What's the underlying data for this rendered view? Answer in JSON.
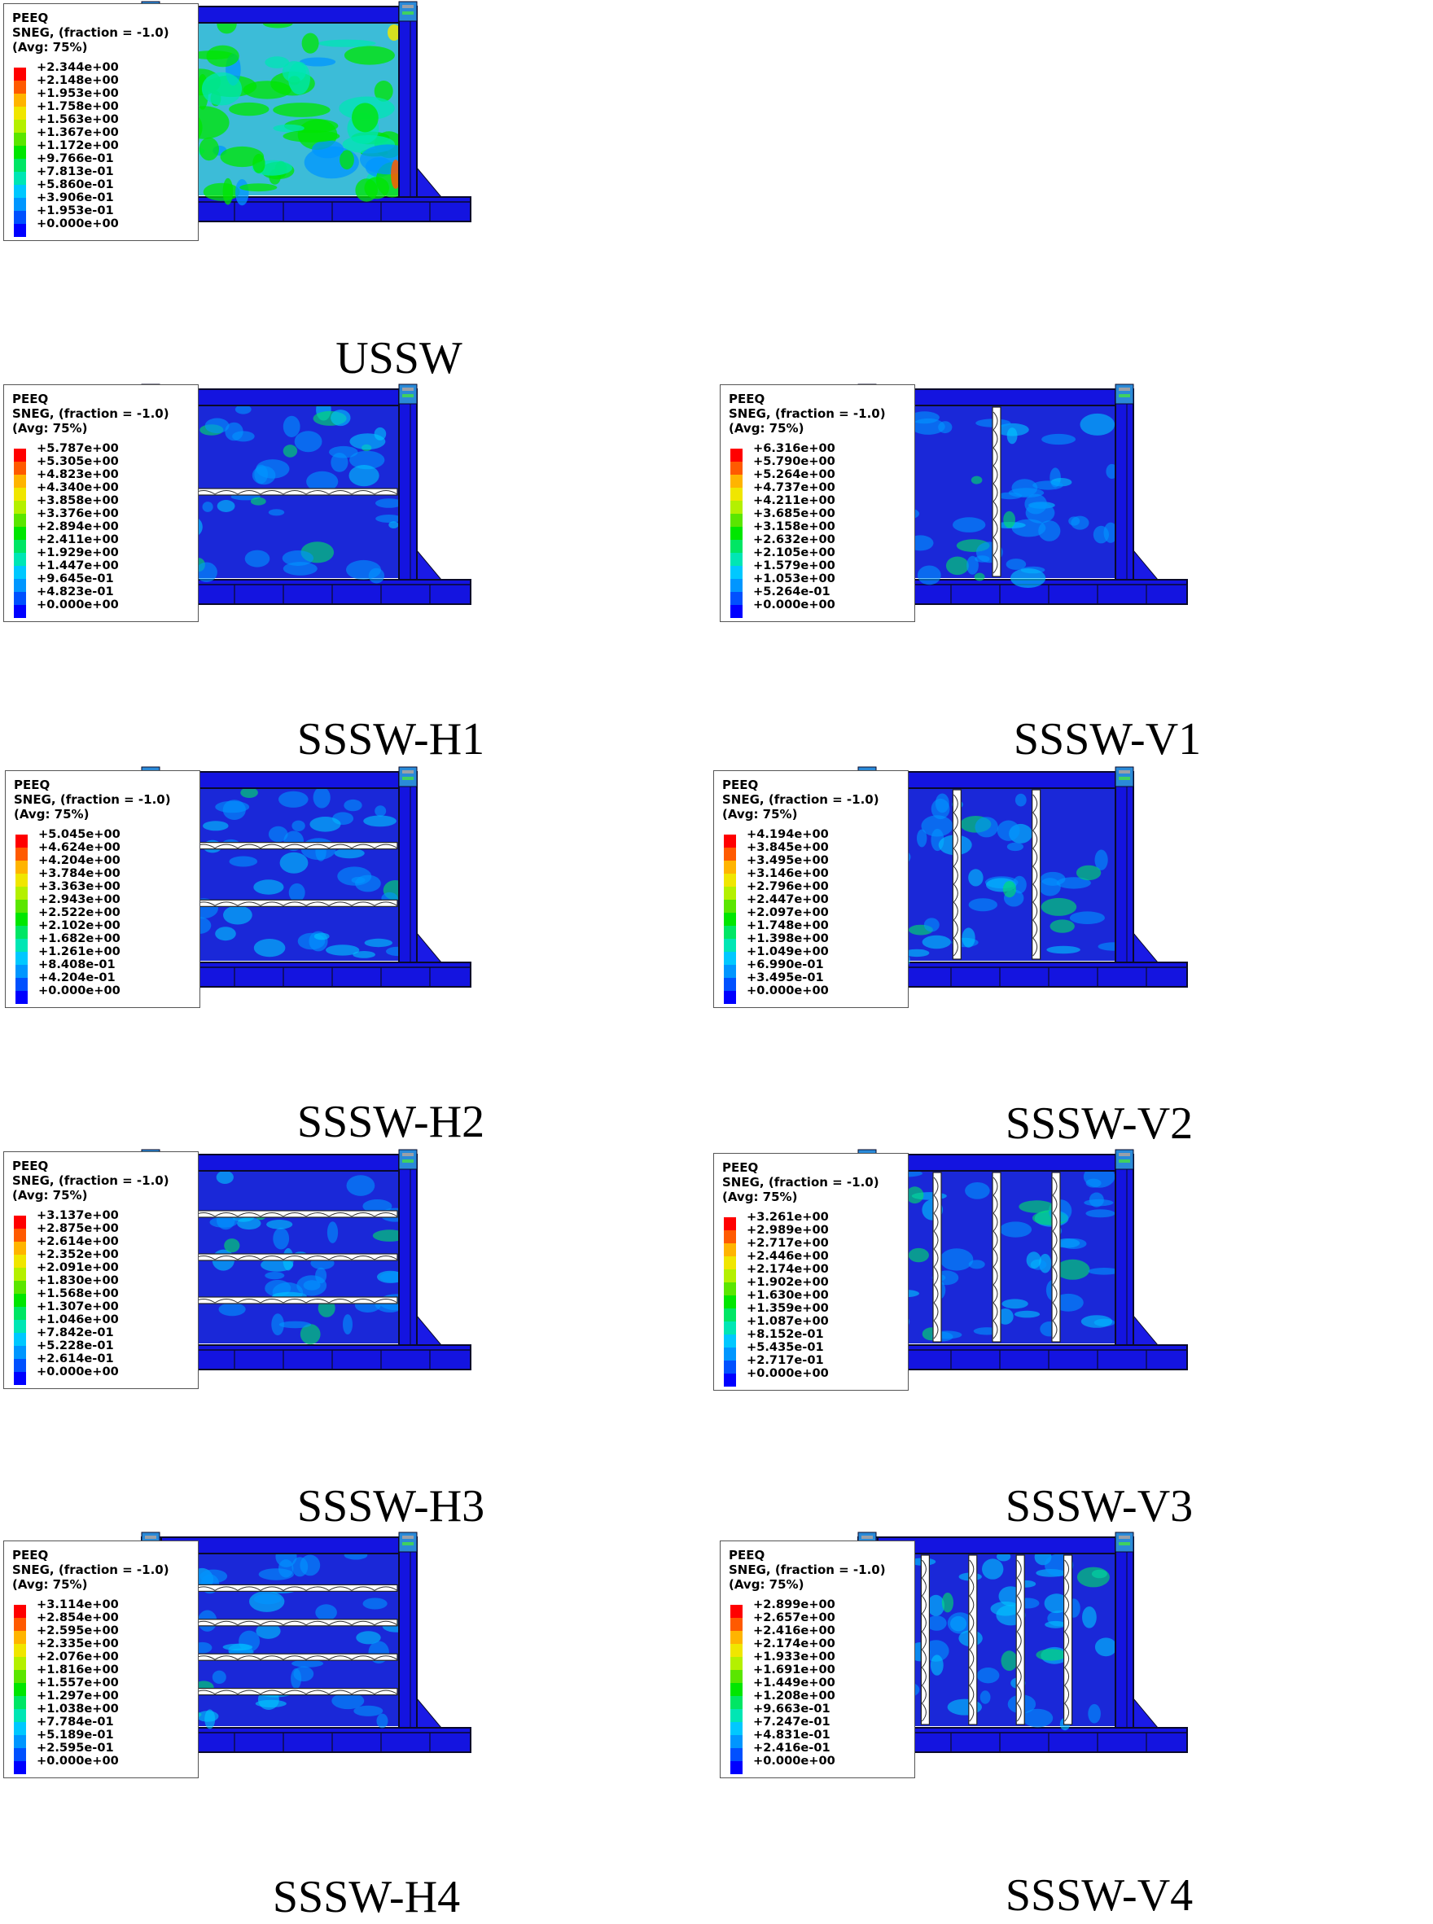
{
  "legend_header": [
    "PEEQ",
    "SNEG, (fraction = -1.0)",
    "(Avg: 75%)"
  ],
  "contour_colors": [
    "#ff0000",
    "#ff5a00",
    "#ffb400",
    "#f0e600",
    "#b4f000",
    "#5ae600",
    "#00e600",
    "#00e664",
    "#00e6b4",
    "#00c8ff",
    "#0096ff",
    "#0050ff",
    "#0000ff"
  ],
  "panels": [
    {
      "caption": "USSW",
      "slits": "none",
      "count": 0,
      "legend": [
        "+2.344e+00",
        "+2.148e+00",
        "+1.953e+00",
        "+1.758e+00",
        "+1.563e+00",
        "+1.367e+00",
        "+1.172e+00",
        "+9.766e-01",
        "+7.813e-01",
        "+5.860e-01",
        "+3.906e-01",
        "+1.953e-01",
        "+0.000e+00"
      ]
    },
    {
      "caption": "SSSW-H1",
      "slits": "horizontal",
      "count": 1,
      "legend": [
        "+5.787e+00",
        "+5.305e+00",
        "+4.823e+00",
        "+4.340e+00",
        "+3.858e+00",
        "+3.376e+00",
        "+2.894e+00",
        "+2.411e+00",
        "+1.929e+00",
        "+1.447e+00",
        "+9.645e-01",
        "+4.823e-01",
        "+0.000e+00"
      ]
    },
    {
      "caption": "SSSW-V1",
      "slits": "vertical",
      "count": 1,
      "legend": [
        "+6.316e+00",
        "+5.790e+00",
        "+5.264e+00",
        "+4.737e+00",
        "+4.211e+00",
        "+3.685e+00",
        "+3.158e+00",
        "+2.632e+00",
        "+2.105e+00",
        "+1.579e+00",
        "+1.053e+00",
        "+5.264e-01",
        "+0.000e+00"
      ]
    },
    {
      "caption": "SSSW-H2",
      "slits": "horizontal",
      "count": 2,
      "legend": [
        "+5.045e+00",
        "+4.624e+00",
        "+4.204e+00",
        "+3.784e+00",
        "+3.363e+00",
        "+2.943e+00",
        "+2.522e+00",
        "+2.102e+00",
        "+1.682e+00",
        "+1.261e+00",
        "+8.408e-01",
        "+4.204e-01",
        "+0.000e+00"
      ]
    },
    {
      "caption": "SSSW-V2",
      "slits": "vertical",
      "count": 2,
      "legend": [
        "+4.194e+00",
        "+3.845e+00",
        "+3.495e+00",
        "+3.146e+00",
        "+2.796e+00",
        "+2.447e+00",
        "+2.097e+00",
        "+1.748e+00",
        "+1.398e+00",
        "+1.049e+00",
        "+6.990e-01",
        "+3.495e-01",
        "+0.000e+00"
      ]
    },
    {
      "caption": "SSSW-H3",
      "slits": "horizontal",
      "count": 3,
      "legend": [
        "+3.137e+00",
        "+2.875e+00",
        "+2.614e+00",
        "+2.352e+00",
        "+2.091e+00",
        "+1.830e+00",
        "+1.568e+00",
        "+1.307e+00",
        "+1.046e+00",
        "+7.842e-01",
        "+5.228e-01",
        "+2.614e-01",
        "+0.000e+00"
      ]
    },
    {
      "caption": "SSSW-V3",
      "slits": "vertical",
      "count": 3,
      "legend": [
        "+3.261e+00",
        "+2.989e+00",
        "+2.717e+00",
        "+2.446e+00",
        "+2.174e+00",
        "+1.902e+00",
        "+1.630e+00",
        "+1.359e+00",
        "+1.087e+00",
        "+8.152e-01",
        "+5.435e-01",
        "+2.717e-01",
        "+0.000e+00"
      ]
    },
    {
      "caption": "SSSW-H4",
      "slits": "horizontal",
      "count": 4,
      "legend": [
        "+3.114e+00",
        "+2.854e+00",
        "+2.595e+00",
        "+2.335e+00",
        "+2.076e+00",
        "+1.816e+00",
        "+1.557e+00",
        "+1.297e+00",
        "+1.038e+00",
        "+7.784e-01",
        "+5.189e-01",
        "+2.595e-01",
        "+0.000e+00"
      ]
    },
    {
      "caption": "SSSW-V4",
      "slits": "vertical",
      "count": 4,
      "legend": [
        "+2.899e+00",
        "+2.657e+00",
        "+2.416e+00",
        "+2.174e+00",
        "+1.933e+00",
        "+1.691e+00",
        "+1.449e+00",
        "+1.208e+00",
        "+9.663e-01",
        "+7.247e-01",
        "+4.831e-01",
        "+2.416e-01",
        "+0.000e+00"
      ]
    }
  ]
}
